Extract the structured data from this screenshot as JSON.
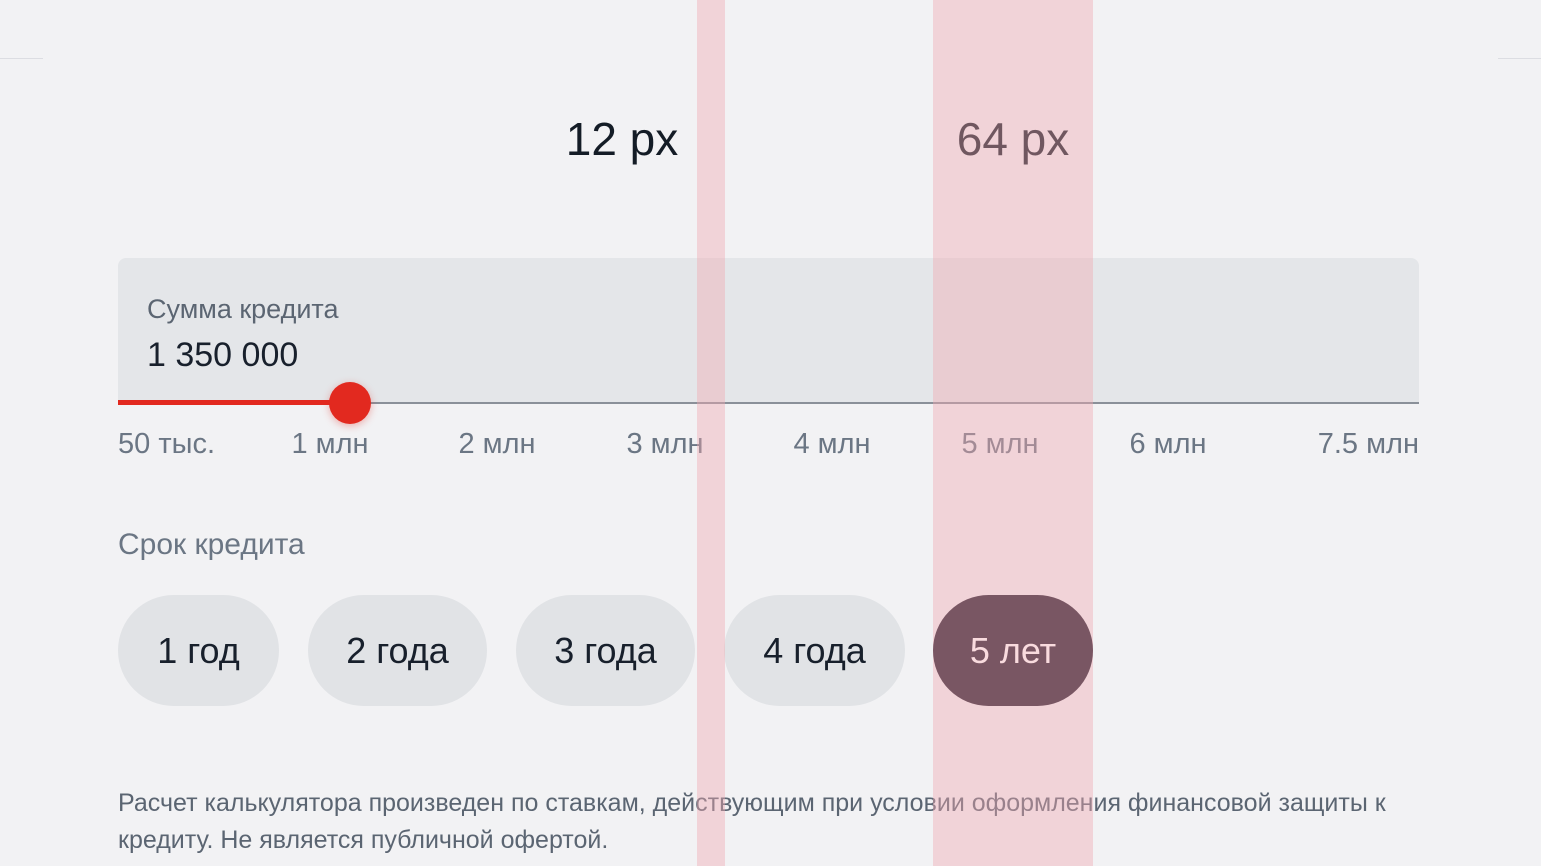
{
  "annotations": {
    "gap_label": "12 px",
    "chip_width_label": "64 px",
    "overlay_color": "#f0aab0"
  },
  "loan_amount": {
    "label": "Сумма кредита",
    "value": "1 350 000",
    "slider_value": 1350000,
    "slider_min": 50000,
    "slider_max": 7500000,
    "accent_color": "#e2291f",
    "ticks": [
      "50 тыс.",
      "1 млн",
      "2 млн",
      "3 млн",
      "4 млн",
      "5 млн",
      "6 млн",
      "7.5 млн"
    ]
  },
  "loan_term": {
    "label": "Срок кредита",
    "options": [
      "1 год",
      "2 года",
      "3 года",
      "4 года",
      "5 лет"
    ],
    "selected": "5 лет",
    "selected_color": "#231a2c"
  },
  "disclaimer": "Расчет калькулятора произведен по ставкам, действующим при условии оформления финансовой защиты к кредиту. Не является публичной офертой."
}
